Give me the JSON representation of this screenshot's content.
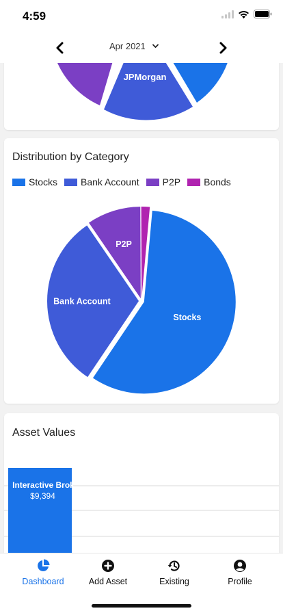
{
  "status": {
    "time": "4:59"
  },
  "header": {
    "month_label": "Apr 2021"
  },
  "cards": {
    "by_institution": {
      "visible_label": "JPMorgan"
    },
    "by_category": {
      "title": "Distribution by Category"
    },
    "asset_values": {
      "title": "Asset Values"
    }
  },
  "chart_data": [
    {
      "type": "pie",
      "title": "",
      "labels": [
        "JPMorgan"
      ],
      "note_visible": "Partially visible pie; only the JPMorgan slice is labeled",
      "colors": [
        "#7b3fc4",
        "#3f5bd8",
        "#1f6fe8"
      ]
    },
    {
      "type": "pie",
      "title": "Distribution by Category",
      "labels": [
        "Stocks",
        "Bank Account",
        "P2P",
        "Bonds"
      ],
      "values": [
        58,
        31,
        9.5,
        1.5
      ],
      "colors": [
        "#1a73e8",
        "#3f5bd8",
        "#7b3fc4",
        "#b023b0"
      ],
      "legend_position": "top"
    },
    {
      "type": "bar",
      "title": "Asset Values",
      "categories": [
        "Interactive Brok"
      ],
      "values": [
        9394
      ],
      "value_labels": [
        "$9,394"
      ],
      "colors": [
        "#1a73e8"
      ]
    }
  ],
  "tabs": [
    {
      "label": "Dashboard",
      "icon": "pie-chart-icon",
      "active": true
    },
    {
      "label": "Add Asset",
      "icon": "plus-circle-icon",
      "active": false
    },
    {
      "label": "Existing",
      "icon": "history-icon",
      "active": false
    },
    {
      "label": "Profile",
      "icon": "user-circle-icon",
      "active": false
    }
  ]
}
